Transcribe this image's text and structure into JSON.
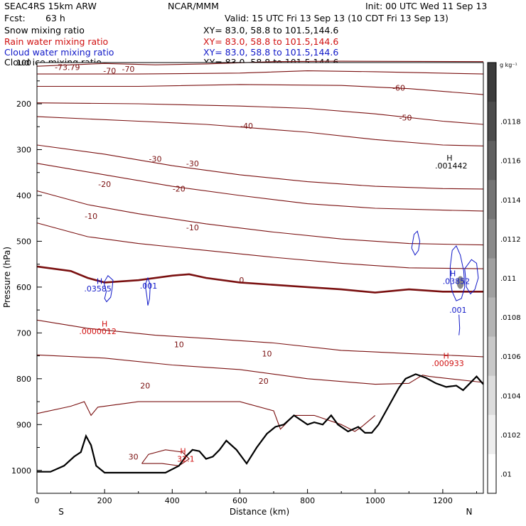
{
  "header": {
    "model": "SEAC4RS 15km ARW",
    "org": "NCAR/MMM",
    "init": "Init: 00 UTC Wed 11 Sep 13",
    "fcst_label": "Fcst:",
    "fcst_value": "63 h",
    "valid": "Valid: 15 UTC Fri 13 Sep 13 (10 CDT Fri 13 Sep 13)"
  },
  "fields": [
    {
      "name": "Snow mixing ratio",
      "xy": "XY=   83.0, 58.8 to 101.5,144.6",
      "color": "#000000"
    },
    {
      "name": "Rain water mixing ratio",
      "xy": "XY=  83.0, 58.8 to 101.5,144.6",
      "color": "#d01010"
    },
    {
      "name": "Cloud water mixing ratio",
      "xy": "XY=  83.0, 58.8 to 101.5,144.6",
      "color": "#1018c8"
    },
    {
      "name": "Cloud ice mixing ratio",
      "xy": "XY=  83.0, 58.8 to 101.5,144.6",
      "color": "#000000"
    }
  ],
  "chart_data": {
    "type": "cross-section",
    "xlabel": "Distance (km)",
    "ylabel": "Pressure (hPa)",
    "xlim": [
      0,
      1320
    ],
    "ylim": [
      1050,
      110
    ],
    "x_ticks": [
      0,
      200,
      400,
      600,
      800,
      1000,
      1200
    ],
    "y_ticks": [
      200,
      300,
      400,
      500,
      600,
      700,
      800,
      900,
      1000
    ],
    "y_tick_top_label": "100",
    "left_end_label": "S",
    "right_end_label": "N",
    "colorbar": {
      "unit": "g kg⁻¹",
      "labels": [
        ".0118",
        ".0116",
        ".0114",
        ".0112",
        ".011",
        ".0108",
        ".0106",
        ".0104",
        ".0102",
        ".01"
      ],
      "shades": [
        "#3c3c3c",
        "#4c4c4c",
        "#606060",
        "#747474",
        "#8a8a8a",
        "#a0a0a0",
        "#b4b4b4",
        "#c8c8c8",
        "#dcdcdc",
        "#eeeeee",
        "#ffffff"
      ]
    },
    "contour_color": "#7a1010",
    "temperature_contour_labels": [
      {
        "text": "-73.79",
        "x": 90,
        "p": 120
      },
      {
        "text": "-70",
        "x": 215,
        "p": 128
      },
      {
        "text": "-70",
        "x": 270,
        "p": 124
      },
      {
        "text": "-60",
        "x": 1070,
        "p": 165
      },
      {
        "text": "-50",
        "x": 1090,
        "p": 230
      },
      {
        "text": "-40",
        "x": 620,
        "p": 248
      },
      {
        "text": "-30",
        "x": 350,
        "p": 320
      },
      {
        "text": "-30",
        "x": 460,
        "p": 330
      },
      {
        "text": "-20",
        "x": 200,
        "p": 375
      },
      {
        "text": "-20",
        "x": 420,
        "p": 385
      },
      {
        "text": "-10",
        "x": 160,
        "p": 445
      },
      {
        "text": "-10",
        "x": 460,
        "p": 470
      },
      {
        "text": "0",
        "x": 605,
        "p": 585
      },
      {
        "text": "10",
        "x": 420,
        "p": 725
      },
      {
        "text": "10",
        "x": 680,
        "p": 745
      },
      {
        "text": "20",
        "x": 320,
        "p": 815
      },
      {
        "text": "20",
        "x": 670,
        "p": 805
      },
      {
        "text": "30",
        "x": 285,
        "p": 970
      }
    ],
    "extrema_labels": [
      {
        "text": "H",
        "x": 1220,
        "p": 318,
        "color": "#000000"
      },
      {
        "text": ".001442",
        "x": 1225,
        "p": 335,
        "color": "#000000"
      },
      {
        "text": "H",
        "x": 185,
        "p": 587,
        "color": "#1018c8"
      },
      {
        "text": ".03585",
        "x": 180,
        "p": 603,
        "color": "#1018c8"
      },
      {
        "text": ".001",
        "x": 330,
        "p": 597,
        "color": "#1018c8"
      },
      {
        "text": "H",
        "x": 1230,
        "p": 570,
        "color": "#1018c8"
      },
      {
        "text": ".03852",
        "x": 1240,
        "p": 587,
        "color": "#1018c8"
      },
      {
        "text": ".001",
        "x": 1245,
        "p": 650,
        "color": "#1018c8"
      },
      {
        "text": "H",
        "x": 200,
        "p": 680,
        "color": "#d01010"
      },
      {
        "text": ".0000012",
        "x": 180,
        "p": 696,
        "color": "#d01010"
      },
      {
        "text": "H",
        "x": 1210,
        "p": 750,
        "color": "#d01010"
      },
      {
        "text": ".000933",
        "x": 1215,
        "p": 766,
        "color": "#d01010"
      },
      {
        "text": "H",
        "x": 432,
        "p": 958,
        "color": "#d01010"
      },
      {
        "text": "32.1",
        "x": 440,
        "p": 975,
        "color": "#d01010"
      }
    ],
    "terrain": [
      [
        0,
        1003
      ],
      [
        40,
        1003
      ],
      [
        80,
        990
      ],
      [
        110,
        970
      ],
      [
        130,
        960
      ],
      [
        145,
        925
      ],
      [
        160,
        945
      ],
      [
        175,
        990
      ],
      [
        200,
        1005
      ],
      [
        300,
        1005
      ],
      [
        380,
        1005
      ],
      [
        420,
        990
      ],
      [
        440,
        970
      ],
      [
        460,
        955
      ],
      [
        480,
        958
      ],
      [
        500,
        975
      ],
      [
        520,
        970
      ],
      [
        540,
        955
      ],
      [
        560,
        935
      ],
      [
        590,
        955
      ],
      [
        620,
        985
      ],
      [
        650,
        950
      ],
      [
        680,
        920
      ],
      [
        705,
        905
      ],
      [
        730,
        900
      ],
      [
        760,
        880
      ],
      [
        800,
        900
      ],
      [
        820,
        895
      ],
      [
        845,
        900
      ],
      [
        870,
        880
      ],
      [
        890,
        900
      ],
      [
        920,
        915
      ],
      [
        950,
        905
      ],
      [
        970,
        918
      ],
      [
        990,
        918
      ],
      [
        1010,
        900
      ],
      [
        1040,
        860
      ],
      [
        1070,
        820
      ],
      [
        1090,
        800
      ],
      [
        1120,
        790
      ],
      [
        1150,
        798
      ],
      [
        1180,
        810
      ],
      [
        1210,
        818
      ],
      [
        1240,
        815
      ],
      [
        1260,
        825
      ],
      [
        1280,
        810
      ],
      [
        1300,
        795
      ],
      [
        1320,
        812
      ]
    ]
  }
}
